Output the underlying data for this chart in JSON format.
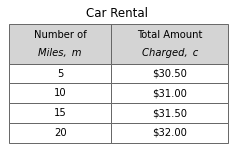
{
  "title": "Car Rental",
  "col1_header_line1": "Number of",
  "col1_header_line2": "Miles,  m",
  "col2_header_line1": "Total Amount",
  "col2_header_line2": "Charged,  c",
  "rows": [
    [
      "5",
      "$30.50"
    ],
    [
      "10",
      "$31.00"
    ],
    [
      "15",
      "$31.50"
    ],
    [
      "20",
      "$32.00"
    ]
  ],
  "header_bg": "#d4d4d4",
  "row_bg": "#ffffff",
  "border_color": "#666666",
  "title_fontsize": 8.5,
  "header_fontsize": 7.2,
  "cell_fontsize": 7.2,
  "fig_bg": "#ffffff"
}
